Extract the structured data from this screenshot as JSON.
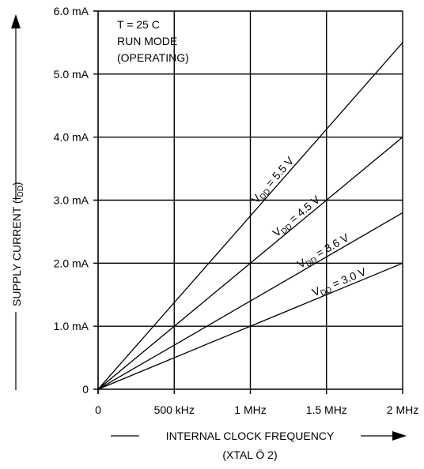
{
  "chart_data": {
    "type": "line",
    "xlabel": "INTERNAL CLOCK FREQUENCY",
    "xlabel_sub": "(XTAL Ö 2)",
    "ylabel": "SUPPLY CURRENT (I",
    "ylabel_sub": "DD",
    "ylabel_end": ")",
    "xlim": [
      0,
      2
    ],
    "ylim": [
      0,
      6
    ],
    "x_ticks": [
      {
        "value": 0,
        "label": "0"
      },
      {
        "value": 0.5,
        "label": "500 kHz"
      },
      {
        "value": 1,
        "label": "1 MHz"
      },
      {
        "value": 1.5,
        "label": "1.5 MHz"
      },
      {
        "value": 2,
        "label": "2 MHz"
      }
    ],
    "y_ticks": [
      {
        "value": 0,
        "label": "0"
      },
      {
        "value": 1,
        "label": "1.0 mA"
      },
      {
        "value": 2,
        "label": "2.0 mA"
      },
      {
        "value": 3,
        "label": "3.0 mA"
      },
      {
        "value": 4,
        "label": "4.0 mA"
      },
      {
        "value": 5,
        "label": "5.0 mA"
      },
      {
        "value": 6,
        "label": "6.0 mA"
      }
    ],
    "grid": true,
    "annotations": [
      "T = 25  C",
      "RUN MODE",
      "(OPERATING)"
    ],
    "series": [
      {
        "name": "V",
        "name_sub": "DD",
        "name_rest": " = 5.5 V",
        "x": [
          0,
          2
        ],
        "y": [
          0,
          5.5
        ],
        "label_at": 1.18
      },
      {
        "name": "V",
        "name_sub": "DD",
        "name_rest": " = 4.5 V",
        "x": [
          0,
          2
        ],
        "y": [
          0,
          4.0
        ],
        "label_at": 1.33
      },
      {
        "name": "V",
        "name_sub": "DD",
        "name_rest": " = 3.6 V",
        "x": [
          0,
          2
        ],
        "y": [
          0,
          2.8
        ],
        "label_at": 1.5
      },
      {
        "name": "V",
        "name_sub": "DD",
        "name_rest": " = 3.0 V",
        "x": [
          0,
          2
        ],
        "y": [
          0,
          2.0
        ],
        "label_at": 1.6
      }
    ]
  }
}
